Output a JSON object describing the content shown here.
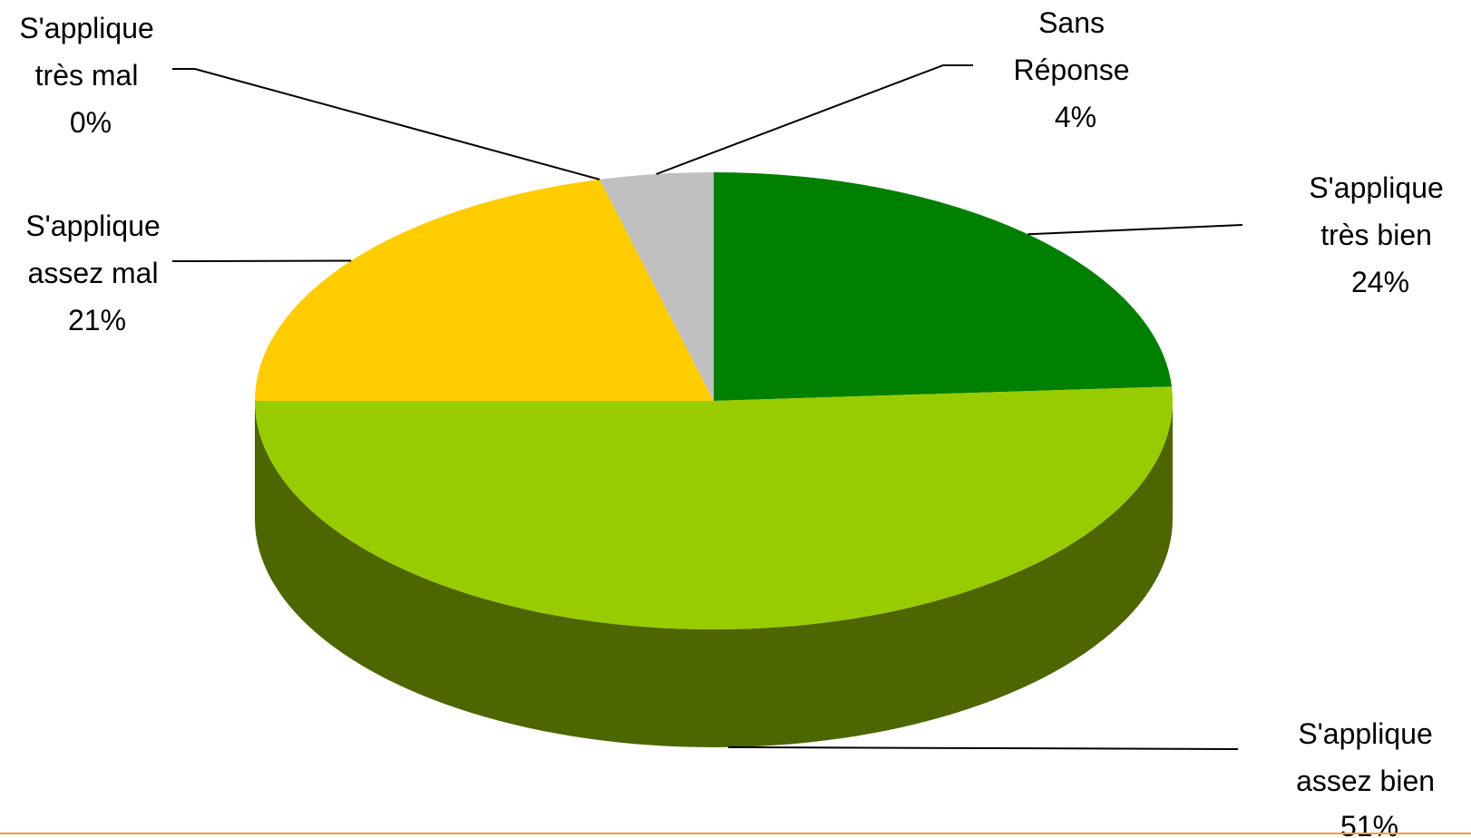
{
  "chart_data": {
    "type": "pie",
    "style": "3d-exploded-none",
    "title": "",
    "legend": "none",
    "start_angle_deg": 90,
    "direction": "clockwise",
    "slices": [
      {
        "label_lines": [
          "S'applique",
          "très bien"
        ],
        "value": 24,
        "value_label": "24%",
        "color": "#008000",
        "side_color": "#005a00"
      },
      {
        "label_lines": [
          "S'applique",
          "assez bien"
        ],
        "value": 51,
        "value_label": "51%",
        "color": "#99cc00",
        "side_color": "#4d6600"
      },
      {
        "label_lines": [
          "S'applique",
          "assez mal"
        ],
        "value": 21,
        "value_label": "21%",
        "color": "#ffcc00",
        "side_color": "#b38f00"
      },
      {
        "label_lines": [
          "S'applique",
          "très mal"
        ],
        "value": 0,
        "value_label": "0%",
        "color": "#ff6600",
        "side_color": "#b34700"
      },
      {
        "label_lines": [
          "Sans",
          "Réponse"
        ],
        "value": 4,
        "value_label": "4%",
        "color": "#c0c0c0",
        "side_color": "#808080"
      }
    ]
  }
}
